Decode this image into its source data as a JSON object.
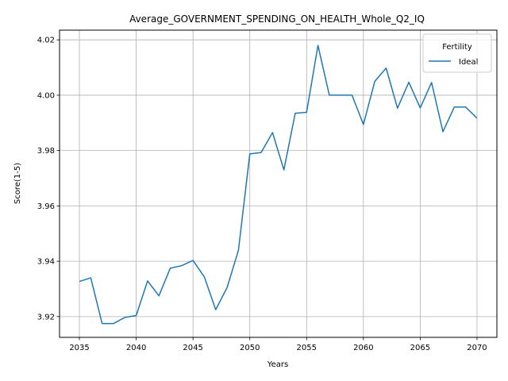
{
  "chart_data": {
    "type": "line",
    "title": "Average_GOVERNMENT_SPENDING_ON_HEALTH_Whole_Q2_IQ",
    "xlabel": "Years",
    "ylabel": "Score(1-5)",
    "xlim": [
      2033.25,
      2071.75
    ],
    "ylim": [
      3.9125,
      4.0235
    ],
    "xticks": [
      2035,
      2040,
      2045,
      2050,
      2055,
      2060,
      2065,
      2070
    ],
    "yticks": [
      3.92,
      3.94,
      3.96,
      3.98,
      4.0,
      4.02
    ],
    "ytick_labels": [
      "3.92",
      "3.94",
      "3.96",
      "3.98",
      "4.00",
      "4.02"
    ],
    "grid": true,
    "legend": {
      "title": "Fertility",
      "placement": "top-right"
    },
    "series": [
      {
        "name": "Ideal",
        "color": "#1f77b4",
        "x": [
          2035,
          2036,
          2037,
          2038,
          2039,
          2040,
          2041,
          2042,
          2043,
          2044,
          2045,
          2046,
          2047,
          2048,
          2049,
          2050,
          2051,
          2052,
          2053,
          2054,
          2055,
          2056,
          2057,
          2058,
          2059,
          2060,
          2061,
          2062,
          2063,
          2064,
          2065,
          2066,
          2067,
          2068,
          2069,
          2070
        ],
        "y": [
          3.9327,
          3.934,
          3.9175,
          3.9175,
          3.9197,
          3.9204,
          3.9329,
          3.9275,
          3.9375,
          3.9384,
          3.9403,
          3.9343,
          3.9225,
          3.9305,
          3.944,
          3.9788,
          3.9793,
          3.9865,
          3.973,
          3.9935,
          3.9938,
          4.018,
          4.0,
          4.0,
          4.0,
          3.9894,
          4.005,
          4.0098,
          3.9953,
          4.0047,
          3.9954,
          4.0046,
          3.9868,
          3.9957,
          3.9957,
          3.9917
        ]
      }
    ]
  }
}
